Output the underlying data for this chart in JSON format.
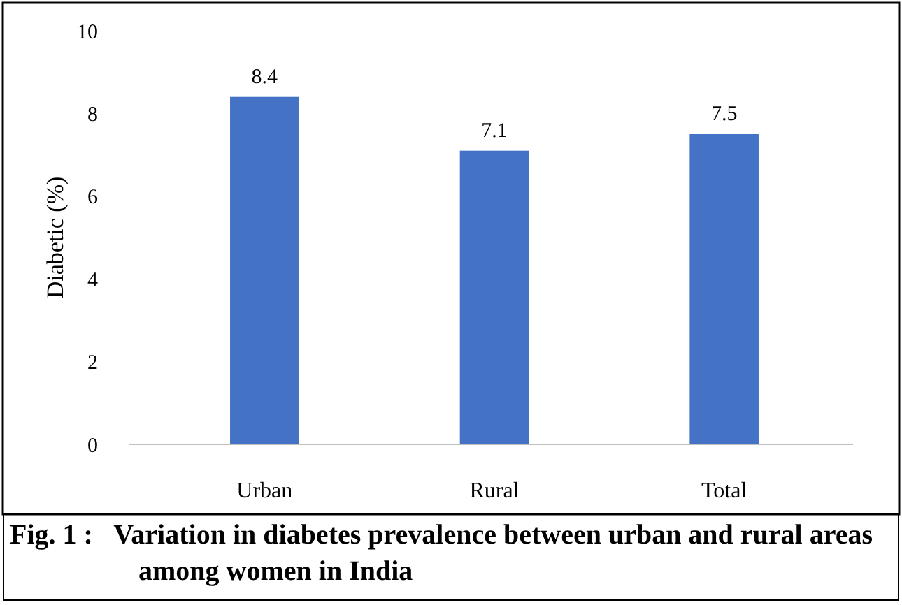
{
  "chart_data": {
    "type": "bar",
    "title": "Fig. 1 :   Variation in diabetes prevalence between urban and rural areas among women in India",
    "ylabel": "Diabetic (%)",
    "categories": [
      "Urban",
      "Rural",
      "Total"
    ],
    "values": [
      8.4,
      7.1,
      7.5
    ],
    "color": "#4472c4",
    "ylim": [
      0,
      10
    ],
    "yticks": [
      0,
      2,
      4,
      6,
      8,
      10
    ],
    "grid": false,
    "data_labels": true
  }
}
